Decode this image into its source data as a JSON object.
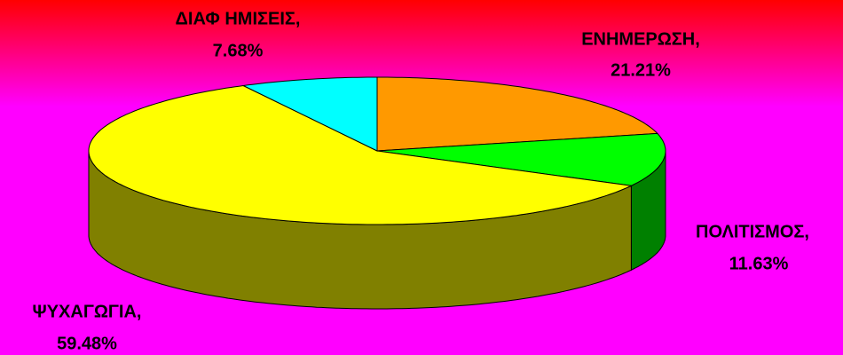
{
  "chart_data": {
    "type": "pie3d",
    "categories": [
      "ΕΝΗΜΕΡΩΣΗ,",
      "ΠΟΛΙΤΙΣΜΟΣ,",
      "ΨΥΧΑΓΩΓΙΑ,",
      "ΔΙΑΦ ΗΜΙΣΕΙΣ,"
    ],
    "values": [
      21.21,
      11.63,
      59.48,
      7.68
    ],
    "value_labels": [
      "21.21%",
      "11.63%",
      "59.48%",
      "7.68%"
    ],
    "colors": [
      "#ff9900",
      "#00ff00",
      "#ffff00",
      "#00ffff"
    ],
    "side_colors": [
      "#996600",
      "#008000",
      "#808000",
      "#008080"
    ]
  }
}
